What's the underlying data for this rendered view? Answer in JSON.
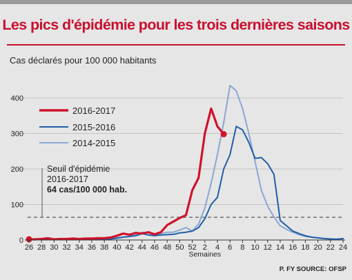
{
  "title": "Les pics d'épidémie pour les trois dernières saisons",
  "subtitle": "Cas déclarés pour 100 000 habitants",
  "source": "P. FY SOURCE: OFSP",
  "chart_data": {
    "type": "line",
    "title": "Les pics d'épidémie pour les trois dernières saisons",
    "ylabel": "Cas déclarés pour 100 000 habitants",
    "xlabel": "Semaines",
    "ylim": [
      0,
      450
    ],
    "yticks": [
      0,
      100,
      200,
      300,
      400
    ],
    "x_tick_labels": [
      "26",
      "28",
      "30",
      "32",
      "34",
      "36",
      "38",
      "40",
      "42",
      "44",
      "46",
      "48",
      "50",
      "52",
      "2",
      "4",
      "6",
      "8",
      "10",
      "12",
      "14",
      "16",
      "18",
      "20",
      "22",
      "24"
    ],
    "x_order": [
      "26",
      "27",
      "28",
      "29",
      "30",
      "31",
      "32",
      "33",
      "34",
      "35",
      "36",
      "37",
      "38",
      "39",
      "40",
      "41",
      "42",
      "43",
      "44",
      "45",
      "46",
      "47",
      "48",
      "49",
      "50",
      "51",
      "52",
      "1",
      "2",
      "3",
      "4",
      "5",
      "6",
      "7",
      "8",
      "9",
      "10",
      "11",
      "12",
      "13",
      "14",
      "15",
      "16",
      "17",
      "18",
      "19",
      "20",
      "21",
      "22",
      "23",
      "24"
    ],
    "legend_position": "top-left",
    "grid": "horizontal",
    "series": [
      {
        "name": "2016-2017",
        "color": "#d0122b",
        "x": [
          "26",
          "27",
          "28",
          "29",
          "30",
          "31",
          "32",
          "33",
          "34",
          "35",
          "36",
          "37",
          "38",
          "39",
          "40",
          "41",
          "42",
          "43",
          "44",
          "45",
          "46",
          "47",
          "48",
          "49",
          "50",
          "51",
          "52",
          "1",
          "2",
          "3",
          "4",
          "5"
        ],
        "values": [
          2,
          2,
          3,
          5,
          2,
          3,
          3,
          4,
          3,
          4,
          4,
          5,
          5,
          7,
          12,
          18,
          15,
          20,
          18,
          22,
          16,
          22,
          42,
          52,
          62,
          70,
          140,
          175,
          300,
          370,
          320,
          298
        ]
      },
      {
        "name": "2015-2016",
        "color": "#1f5fa6",
        "x": [
          "26",
          "27",
          "28",
          "29",
          "30",
          "31",
          "32",
          "33",
          "34",
          "35",
          "36",
          "37",
          "38",
          "39",
          "40",
          "41",
          "42",
          "43",
          "44",
          "45",
          "46",
          "47",
          "48",
          "49",
          "50",
          "51",
          "52",
          "1",
          "2",
          "3",
          "4",
          "5",
          "6",
          "7",
          "8",
          "9",
          "10",
          "11",
          "12",
          "13",
          "14",
          "15",
          "16",
          "17",
          "18",
          "19",
          "20",
          "21",
          "22",
          "23",
          "24"
        ],
        "values": [
          1,
          1,
          1,
          1,
          1,
          1,
          1,
          1,
          2,
          2,
          2,
          3,
          3,
          3,
          5,
          8,
          10,
          12,
          18,
          14,
          12,
          14,
          15,
          16,
          20,
          22,
          25,
          35,
          60,
          100,
          120,
          200,
          240,
          320,
          310,
          275,
          230,
          232,
          215,
          185,
          55,
          40,
          25,
          18,
          12,
          8,
          6,
          4,
          3,
          2,
          4
        ]
      },
      {
        "name": "2014-2015",
        "color": "#8aa6d1",
        "x": [
          "26",
          "27",
          "28",
          "29",
          "30",
          "31",
          "32",
          "33",
          "34",
          "35",
          "36",
          "37",
          "38",
          "39",
          "40",
          "41",
          "42",
          "43",
          "44",
          "45",
          "46",
          "47",
          "48",
          "49",
          "50",
          "51",
          "52",
          "1",
          "2",
          "3",
          "4",
          "5",
          "6",
          "7",
          "8",
          "9",
          "10",
          "11",
          "12",
          "13",
          "14",
          "15",
          "16",
          "17",
          "18",
          "19",
          "20",
          "21",
          "22",
          "23",
          "24"
        ],
        "values": [
          2,
          2,
          2,
          2,
          2,
          2,
          2,
          3,
          3,
          3,
          3,
          4,
          4,
          5,
          6,
          8,
          10,
          14,
          22,
          20,
          15,
          18,
          22,
          22,
          28,
          35,
          25,
          45,
          90,
          160,
          240,
          330,
          435,
          420,
          370,
          300,
          220,
          140,
          95,
          65,
          40,
          30,
          22,
          15,
          10,
          8,
          6,
          4,
          3,
          3,
          2
        ]
      }
    ],
    "threshold": {
      "value": 64,
      "label_line1": "Seuil d'épidémie",
      "label_line2": "2016-2017",
      "label_line3": "64 cas/100 000 hab."
    }
  }
}
